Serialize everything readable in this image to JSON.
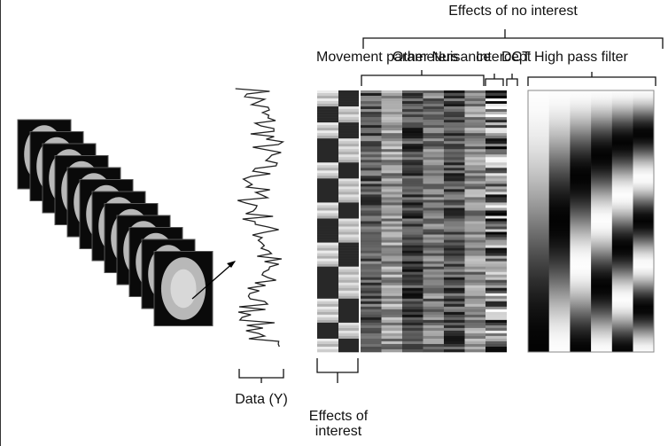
{
  "top_label": "Effects of no interest",
  "group_labels": [
    "Movement parameters",
    "Other Nuisance",
    "Intercept",
    "DCT High pass filter"
  ],
  "data_label": "Data (Y)",
  "interest_label": "Effects of interest"
}
